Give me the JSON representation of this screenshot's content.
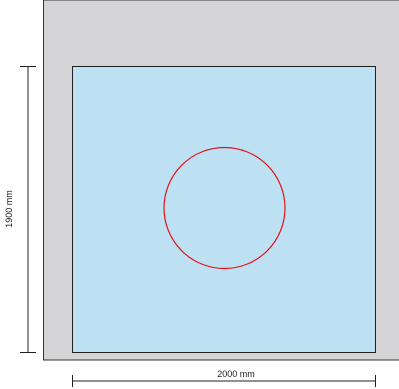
{
  "diagram": {
    "height_label": "1900 mm",
    "width_label": "2000 mm"
  },
  "colors": {
    "frame": "#d4d4d6",
    "panel": "#bde0f2",
    "circle": "#e0141e",
    "line": "#000000"
  },
  "icons": {
    "center_mark": "circle"
  }
}
